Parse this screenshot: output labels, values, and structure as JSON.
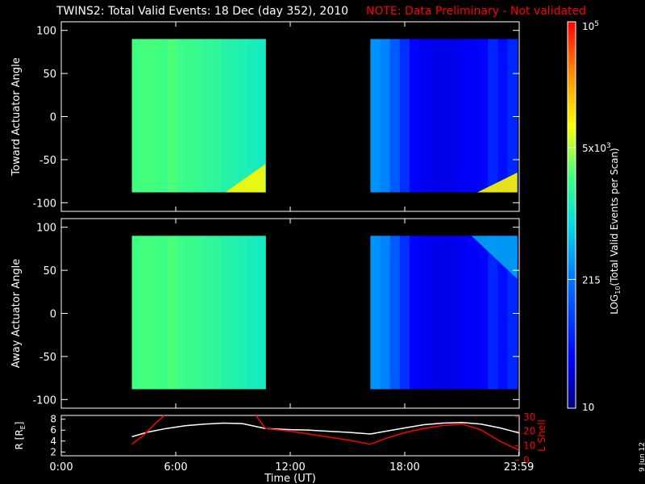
{
  "title": {
    "main": "TWINS2: Total Valid Events: 18 Dec (day 352), 2010",
    "note": "NOTE: Data Preliminary - Not validated"
  },
  "side_date": "9 Jun 12",
  "colors": {
    "note": "#ff0000",
    "lshell": "#ff0000",
    "radius": "#ffffff",
    "background": "#000000"
  },
  "chart_data": [
    {
      "type": "heatmap",
      "ylabel": "Toward Actuator Angle",
      "ylim": [
        -110,
        110
      ],
      "yticks": [
        100,
        50,
        0,
        -50,
        -100
      ],
      "xlim": [
        0,
        24
      ],
      "segments": [
        {
          "t_start": 3.7,
          "t_end": 10.7,
          "angle_range": [
            -88,
            90
          ],
          "profile": [
            2500,
            2600,
            2550,
            2400,
            2700,
            2300,
            2200,
            2100,
            1900,
            1800,
            1600,
            1500,
            1400,
            1300,
            1200
          ],
          "enhancement": {
            "t_start": 8.6,
            "t_end": 10.7,
            "angle_top": -55,
            "value": 9000
          }
        },
        {
          "t_start": 16.2,
          "t_end": 23.9,
          "angle_range": [
            -88,
            90
          ],
          "profile": [
            320,
            260,
            140,
            70,
            35,
            30,
            28,
            27,
            28,
            30,
            32,
            35,
            60,
            40,
            60
          ],
          "enhancement": {
            "t_start": 21.8,
            "t_end": 23.9,
            "angle_top": -65,
            "value": 9000
          }
        }
      ]
    },
    {
      "type": "heatmap",
      "ylabel": "Away Actuator Angle",
      "ylim": [
        -110,
        110
      ],
      "yticks": [
        100,
        50,
        0,
        -50,
        -100
      ],
      "xlim": [
        0,
        24
      ],
      "segments": [
        {
          "t_start": 3.7,
          "t_end": 10.7,
          "angle_range": [
            -88,
            90
          ],
          "profile": [
            2500,
            2600,
            2550,
            2400,
            2700,
            2300,
            2200,
            2100,
            1900,
            1800,
            1600,
            1500,
            1400,
            1300,
            1200
          ],
          "enhancement": null
        },
        {
          "t_start": 16.2,
          "t_end": 23.9,
          "angle_range": [
            -88,
            90
          ],
          "profile": [
            320,
            260,
            140,
            70,
            35,
            30,
            28,
            27,
            28,
            30,
            32,
            35,
            60,
            40,
            60
          ],
          "enhancement": {
            "t_start": 21.5,
            "t_end": 23.9,
            "angle_bottom": 40,
            "value": 400
          }
        }
      ]
    },
    {
      "type": "line",
      "xlabel": "Time (UT)",
      "ylabel": "R [R",
      "ylabel_sub": "E",
      "ylabel_close": "]",
      "ylim": [
        1.3,
        8.7
      ],
      "yticks": [
        2,
        4,
        6,
        8
      ],
      "y2label": "L Shell",
      "y2lim": [
        3,
        31
      ],
      "y2ticks": [
        0,
        10,
        20,
        30
      ],
      "xlim": [
        0,
        24
      ],
      "xticks": [
        {
          "t": 0,
          "label": "0:00"
        },
        {
          "t": 6,
          "label": "6:00"
        },
        {
          "t": 12,
          "label": "12:00"
        },
        {
          "t": 18,
          "label": "18:00"
        },
        {
          "t": 23.98,
          "label": "23:59"
        }
      ],
      "series": [
        {
          "name": "R",
          "axis": "left",
          "color": "#ffffff",
          "x": [
            3.7,
            4.5,
            5.5,
            6.5,
            7.5,
            8.5,
            9.5,
            10.7,
            12,
            13,
            14,
            15,
            16.2,
            17,
            18,
            19,
            20,
            21,
            22,
            23,
            23.98
          ],
          "y": [
            4.8,
            5.6,
            6.3,
            6.8,
            7.1,
            7.3,
            7.2,
            6.3,
            6.1,
            6.0,
            5.8,
            5.6,
            5.3,
            5.8,
            6.4,
            7.0,
            7.3,
            7.4,
            7.1,
            6.4,
            5.5
          ]
        },
        {
          "name": "L Shell",
          "axis": "right",
          "color": "#ff0000",
          "segments": [
            {
              "x": [
                3.7,
                4.3,
                4.9,
                5.4
              ],
              "y": [
                11,
                17,
                25,
                31
              ]
            },
            {
              "x": [
                10.2,
                10.7,
                12,
                13,
                14,
                15,
                16.2
              ],
              "y": [
                31,
                22,
                20,
                18,
                16,
                14,
                11
              ]
            },
            {
              "x": [
                16.2,
                17,
                18,
                19,
                20,
                21,
                22,
                23,
                23.98
              ],
              "y": [
                11,
                15,
                19,
                22,
                24,
                25,
                21,
                13,
                7
              ]
            }
          ]
        }
      ]
    }
  ],
  "colorbar": {
    "label": "LOG",
    "label_sub": "10",
    "label_rest": "(Total Valid Events per Scan)",
    "min": 10,
    "max": 100000,
    "ticks": [
      {
        "value": 100000,
        "base": "10",
        "exp": "5"
      },
      {
        "value": 5000,
        "base": "5x10",
        "exp": "3"
      },
      {
        "value": 215,
        "base": "215",
        "exp": ""
      },
      {
        "value": 10,
        "base": "10",
        "exp": ""
      }
    ]
  }
}
